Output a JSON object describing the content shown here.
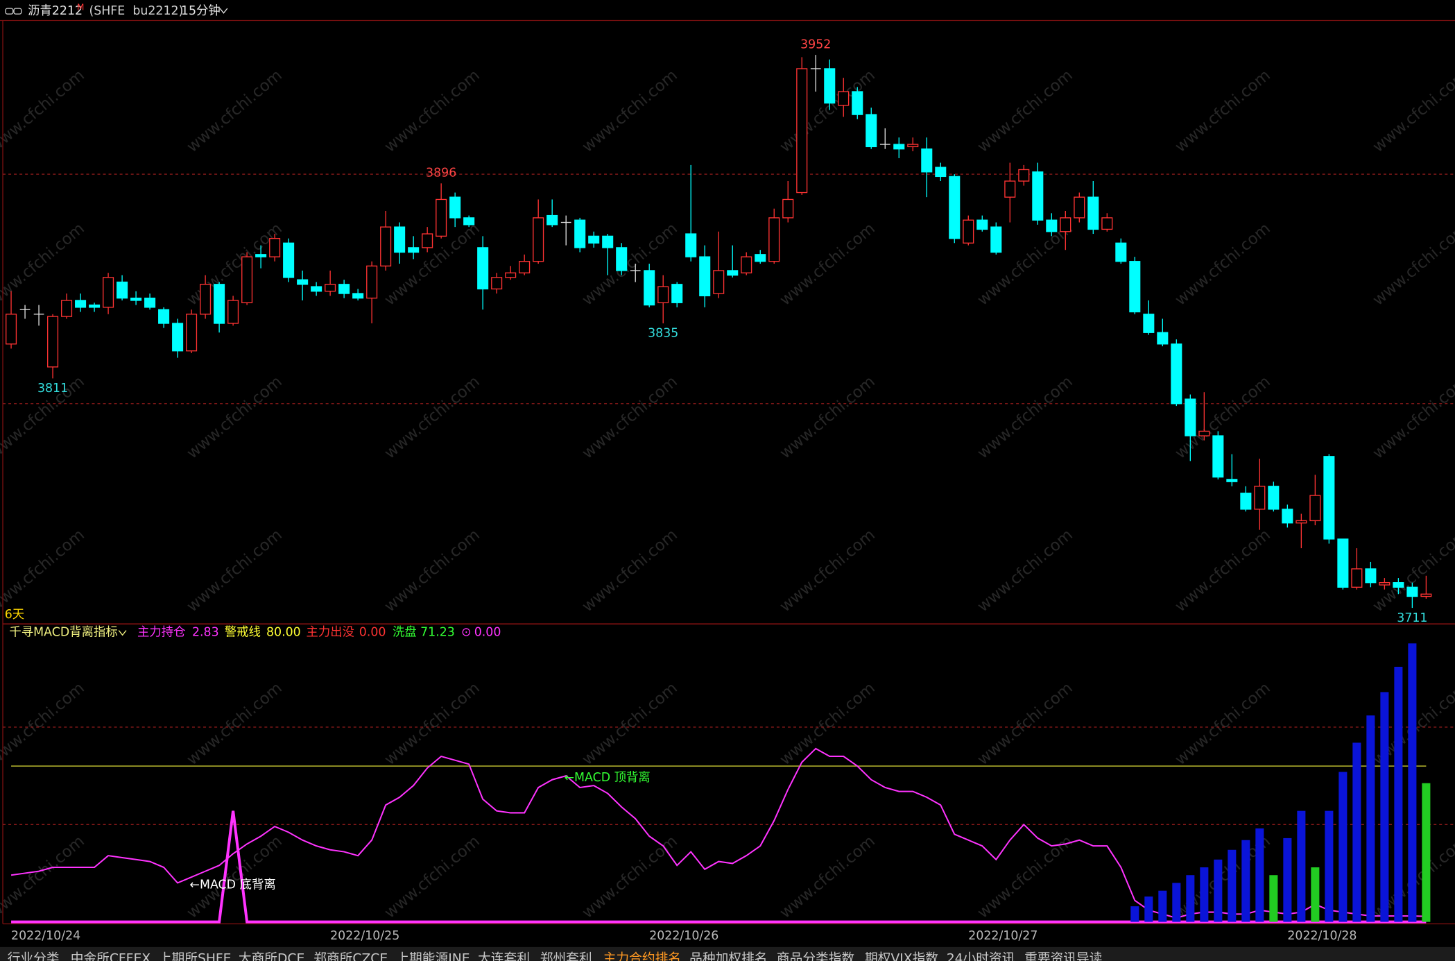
{
  "chart_data": [
    {
      "type": "candlestick",
      "title": "沥青2212",
      "title_mark": "M",
      "subtitle": "(SHFE  bu2212)",
      "period": "15分钟",
      "span_label": "6天",
      "x_labels": [
        {
          "index": 0,
          "label": "2022/10/24"
        },
        {
          "index": 23,
          "label": "2022/10/25"
        },
        {
          "index": 46,
          "label": "2022/10/26"
        },
        {
          "index": 69,
          "label": "2022/10/27"
        },
        {
          "index": 92,
          "label": "2022/10/28"
        }
      ],
      "ylim": [
        3704,
        3967
      ],
      "gridlines": [
        3900,
        3800
      ],
      "up_color": "#ff3333",
      "down_color": "#00ffff",
      "doji_color": "#e0e0e0",
      "ohlc": [
        [
          3826,
          3849,
          3824,
          3839
        ],
        [
          3841,
          3843,
          3837,
          3841
        ],
        [
          3839,
          3843,
          3834,
          3839
        ],
        [
          3816,
          3839,
          3811,
          3838
        ],
        [
          3838,
          3848,
          3837,
          3845
        ],
        [
          3845,
          3848,
          3840,
          3842
        ],
        [
          3843,
          3844,
          3840,
          3842
        ],
        [
          3842,
          3857,
          3839,
          3855
        ],
        [
          3853,
          3856,
          3845,
          3846
        ],
        [
          3846,
          3849,
          3843,
          3845
        ],
        [
          3846,
          3848,
          3841,
          3842
        ],
        [
          3841,
          3842,
          3833,
          3835
        ],
        [
          3835,
          3837,
          3820,
          3823
        ],
        [
          3823,
          3841,
          3822,
          3839
        ],
        [
          3839,
          3856,
          3837,
          3852
        ],
        [
          3852,
          3853,
          3831,
          3835
        ],
        [
          3835,
          3847,
          3834,
          3845
        ],
        [
          3844,
          3866,
          3843,
          3864
        ],
        [
          3865,
          3869,
          3859,
          3864
        ],
        [
          3864,
          3874,
          3862,
          3872
        ],
        [
          3870,
          3872,
          3853,
          3855
        ],
        [
          3854,
          3858,
          3845,
          3852
        ],
        [
          3851,
          3853,
          3847,
          3849
        ],
        [
          3849,
          3858,
          3847,
          3852
        ],
        [
          3852,
          3854,
          3846,
          3848
        ],
        [
          3848,
          3850,
          3845,
          3846
        ],
        [
          3846,
          3862,
          3835,
          3860
        ],
        [
          3860,
          3884,
          3858,
          3877
        ],
        [
          3877,
          3879,
          3861,
          3866
        ],
        [
          3868,
          3873,
          3863,
          3866
        ],
        [
          3868,
          3877,
          3866,
          3874
        ],
        [
          3873,
          3896,
          3872,
          3889
        ],
        [
          3890,
          3892,
          3877,
          3881
        ],
        [
          3881,
          3882,
          3877,
          3878
        ],
        [
          3868,
          3873,
          3841,
          3850
        ],
        [
          3850,
          3857,
          3848,
          3855
        ],
        [
          3855,
          3860,
          3854,
          3857
        ],
        [
          3857,
          3865,
          3856,
          3862
        ],
        [
          3862,
          3889,
          3861,
          3881
        ],
        [
          3882,
          3889,
          3877,
          3878
        ],
        [
          3879,
          3882,
          3869,
          3879
        ],
        [
          3880,
          3881,
          3866,
          3868
        ],
        [
          3873,
          3875,
          3868,
          3870
        ],
        [
          3873,
          3874,
          3856,
          3868
        ],
        [
          3868,
          3870,
          3856,
          3858
        ],
        [
          3858,
          3861,
          3853,
          3858
        ],
        [
          3858,
          3861,
          3842,
          3843
        ],
        [
          3844,
          3856,
          3835,
          3851
        ],
        [
          3852,
          3853,
          3842,
          3844
        ],
        [
          3874,
          3904,
          3862,
          3864
        ],
        [
          3864,
          3869,
          3842,
          3847
        ],
        [
          3848,
          3875,
          3846,
          3858
        ],
        [
          3858,
          3869,
          3855,
          3856
        ],
        [
          3857,
          3866,
          3856,
          3864
        ],
        [
          3865,
          3867,
          3861,
          3862
        ],
        [
          3862,
          3885,
          3861,
          3881
        ],
        [
          3881,
          3897,
          3879,
          3889
        ],
        [
          3892,
          3951,
          3891,
          3946
        ],
        [
          3946,
          3952,
          3936,
          3946
        ],
        [
          3946,
          3950,
          3928,
          3931
        ],
        [
          3930,
          3942,
          3925,
          3936
        ],
        [
          3936,
          3938,
          3924,
          3926
        ],
        [
          3926,
          3929,
          3911,
          3912
        ],
        [
          3913,
          3920,
          3911,
          3913
        ],
        [
          3913,
          3916,
          3907,
          3911
        ],
        [
          3912,
          3916,
          3910,
          3913
        ],
        [
          3911,
          3916,
          3890,
          3901
        ],
        [
          3903,
          3905,
          3897,
          3899
        ],
        [
          3899,
          3900,
          3870,
          3872
        ],
        [
          3870,
          3882,
          3869,
          3880
        ],
        [
          3880,
          3882,
          3875,
          3876
        ],
        [
          3877,
          3879,
          3865,
          3866
        ],
        [
          3890,
          3905,
          3879,
          3897
        ],
        [
          3897,
          3904,
          3895,
          3902
        ],
        [
          3901,
          3905,
          3878,
          3880
        ],
        [
          3880,
          3883,
          3873,
          3875
        ],
        [
          3875,
          3884,
          3867,
          3881
        ],
        [
          3881,
          3892,
          3879,
          3890
        ],
        [
          3890,
          3897,
          3874,
          3876
        ],
        [
          3876,
          3883,
          3875,
          3881
        ],
        [
          3870,
          3872,
          3861,
          3862
        ],
        [
          3862,
          3864,
          3839,
          3840
        ],
        [
          3839,
          3845,
          3830,
          3831
        ],
        [
          3831,
          3837,
          3825,
          3826
        ],
        [
          3826,
          3828,
          3799,
          3800
        ],
        [
          3802,
          3804,
          3775,
          3786
        ],
        [
          3786,
          3805,
          3784,
          3788
        ],
        [
          3786,
          3788,
          3767,
          3768
        ],
        [
          3767,
          3778,
          3764,
          3766
        ],
        [
          3761,
          3764,
          3753,
          3754
        ],
        [
          3754,
          3776,
          3745,
          3764
        ],
        [
          3764,
          3766,
          3753,
          3754
        ],
        [
          3754,
          3756,
          3746,
          3748
        ],
        [
          3748,
          3752,
          3737,
          3749
        ],
        [
          3749,
          3769,
          3747,
          3760
        ],
        [
          3777,
          3778,
          3739,
          3741
        ],
        [
          3741,
          3741,
          3719,
          3720
        ],
        [
          3720,
          3737,
          3719,
          3728
        ],
        [
          3728,
          3731,
          3720,
          3722
        ],
        [
          3721,
          3724,
          3719,
          3722
        ],
        [
          3722,
          3724,
          3717,
          3720
        ],
        [
          3720,
          3722,
          3711,
          3716
        ],
        [
          3716,
          3725,
          3715,
          3717
        ]
      ],
      "annotations": [
        {
          "index": 3,
          "value": 3811
        },
        {
          "index": 31,
          "value": 3896
        },
        {
          "index": 47,
          "value": 3835
        },
        {
          "index": 58,
          "value": 3952
        },
        {
          "index": 101,
          "value": 3711
        }
      ]
    },
    {
      "type": "indicator",
      "title": "千寻MACD背离指标",
      "items": [
        {
          "name": "主力持仓",
          "value": "2.83",
          "color": "#ff33ff"
        },
        {
          "name": "警戒线",
          "value": "80.00",
          "color": "#ffff33"
        },
        {
          "name": "主力出没",
          "value": "0.00",
          "color": "#ff3333"
        },
        {
          "name": "洗盘",
          "value": "71.23",
          "color": "#33ff33"
        },
        {
          "name": "⊙",
          "value": "0.00",
          "color": "#ff33ff"
        }
      ],
      "ylim": [
        -1,
        153
      ],
      "gridlines": [
        100,
        50
      ],
      "alert_line": 80,
      "alert_color": "#c8c832",
      "series": [
        {
          "name": "主力持仓",
          "color": "#ff33ff",
          "kind": "line",
          "values": [
            24,
            25,
            26,
            28,
            28,
            28,
            28,
            34,
            33,
            32,
            31,
            28,
            20,
            23,
            26,
            29,
            35,
            40,
            44,
            49,
            46,
            42,
            39,
            37,
            36,
            34,
            42,
            60,
            64,
            70,
            79,
            85,
            83,
            81,
            63,
            57,
            56,
            56,
            69,
            73,
            75,
            69,
            70,
            66,
            59,
            53,
            44,
            39,
            29,
            36,
            27,
            31,
            30,
            34,
            39,
            52,
            68,
            82,
            89,
            85,
            85,
            80,
            73,
            69,
            67,
            67,
            64,
            60,
            45,
            42,
            39,
            32,
            42,
            50,
            43,
            39,
            40,
            42,
            39,
            39,
            28,
            11,
            6,
            4,
            2,
            4,
            5,
            5,
            4,
            4,
            6,
            5,
            4,
            5,
            9,
            6,
            5,
            4,
            3,
            3,
            3,
            3,
            2.83
          ]
        },
        {
          "name": "⊙",
          "color": "#ff33ff",
          "kind": "thickline",
          "values": [
            0,
            0,
            0,
            0,
            0,
            0,
            0,
            0,
            0,
            0,
            0,
            0,
            0,
            0,
            0,
            0,
            57,
            0,
            0,
            0,
            0,
            0,
            0,
            0,
            0,
            0,
            0,
            0,
            0,
            0,
            0,
            0,
            0,
            0,
            0,
            0,
            0,
            0,
            0,
            0,
            0,
            0,
            0,
            0,
            0,
            0,
            0,
            0,
            0,
            0,
            0,
            0,
            0,
            0,
            0,
            0,
            0,
            0,
            0,
            0,
            0,
            0,
            0,
            0,
            0,
            0,
            0,
            0,
            0,
            0,
            0,
            0,
            0,
            0,
            0,
            0,
            0,
            0,
            0,
            0,
            0,
            0,
            0,
            0,
            0,
            0,
            0,
            0,
            0,
            0,
            0,
            0,
            0,
            0,
            0,
            0,
            0,
            0,
            0,
            0,
            0,
            0,
            0
          ]
        },
        {
          "color": "#0a14d8",
          "kind": "bar",
          "values": [
            null,
            null,
            null,
            null,
            null,
            null,
            null,
            null,
            null,
            null,
            null,
            null,
            null,
            null,
            null,
            null,
            null,
            null,
            null,
            null,
            null,
            null,
            null,
            null,
            null,
            null,
            null,
            null,
            null,
            null,
            null,
            null,
            null,
            null,
            null,
            null,
            null,
            null,
            null,
            null,
            null,
            null,
            null,
            null,
            null,
            null,
            null,
            null,
            null,
            null,
            null,
            null,
            null,
            null,
            null,
            null,
            null,
            null,
            null,
            null,
            null,
            null,
            null,
            null,
            null,
            null,
            null,
            null,
            null,
            null,
            null,
            null,
            null,
            null,
            null,
            null,
            null,
            null,
            null,
            null,
            null,
            8,
            13,
            16,
            20,
            24,
            28,
            32,
            37,
            42,
            48,
            null,
            43,
            57,
            null,
            57,
            77,
            92,
            106,
            118,
            131,
            143,
            null
          ]
        },
        {
          "name": "洗盘",
          "color": "#22cc22",
          "kind": "bar",
          "values": [
            null,
            null,
            null,
            null,
            null,
            null,
            null,
            null,
            null,
            null,
            null,
            null,
            null,
            null,
            null,
            null,
            null,
            null,
            null,
            null,
            null,
            null,
            null,
            null,
            null,
            null,
            null,
            null,
            null,
            null,
            null,
            null,
            null,
            null,
            null,
            null,
            null,
            null,
            null,
            null,
            null,
            null,
            null,
            null,
            null,
            null,
            null,
            null,
            null,
            null,
            null,
            null,
            null,
            null,
            null,
            null,
            null,
            null,
            null,
            null,
            null,
            null,
            null,
            null,
            null,
            null,
            null,
            null,
            null,
            null,
            null,
            null,
            null,
            null,
            null,
            null,
            null,
            null,
            null,
            null,
            null,
            null,
            null,
            null,
            null,
            null,
            null,
            null,
            null,
            null,
            null,
            24,
            null,
            null,
            28,
            null,
            null,
            null,
            null,
            null,
            null,
            null,
            71.23
          ]
        }
      ],
      "annotations": [
        {
          "text": "←MACD 底背离",
          "index": 13,
          "value": 19,
          "color": "#ffffff"
        },
        {
          "text": "←MACD 顶背离",
          "index": 40,
          "value": 74,
          "color": "#33ff33"
        }
      ]
    }
  ],
  "ui": {
    "tabs": [
      "行业分类",
      "中金所CFFEX",
      "上期所SHFE",
      "大商所DCE",
      "郑商所CZCE",
      "上期能源INE",
      "大连套利",
      "郑州套利",
      "主力合约排名",
      "品种加权排名",
      "商品分类指数",
      "期权VIX指数",
      "24小时资讯",
      "重要资讯导读"
    ],
    "active_tab": 8,
    "watermark": "www.cfchi.com"
  }
}
